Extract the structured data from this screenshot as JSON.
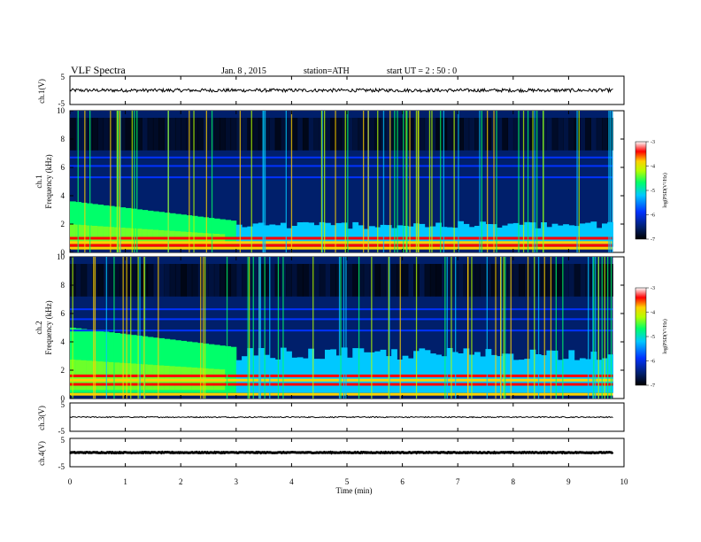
{
  "header": {
    "title": "VLF  Spectra",
    "date": "Jan. 8  , 2015",
    "station": "station=ATH",
    "start": "start  UT  =   2  : 50 : 0"
  },
  "colors": {
    "background": "#ffffff",
    "spectrogram_colormap": [
      "#000000",
      "#001f6b",
      "#0033ff",
      "#00c8ff",
      "#00ff6a",
      "#b4ff00",
      "#ffd000",
      "#ff0000",
      "#ffffff"
    ]
  },
  "chart_data": [
    {
      "type": "line",
      "id": "ch1-waveform",
      "ylabel": "ch.1(V)",
      "ylim": [
        -5,
        5
      ],
      "y_ticks": [
        "5",
        "-5"
      ],
      "xlim": [
        0,
        10
      ],
      "trace_level_V": 0,
      "trace_amplitude_V": 0.6,
      "data_extent_min": 9.8
    },
    {
      "type": "heatmap",
      "id": "ch1-spectrogram",
      "channel_label": "ch.1",
      "ylabel": "Frequency  (kHz)",
      "ylim": [
        0,
        10
      ],
      "y_ticks": [
        "0",
        "2",
        "4",
        "6",
        "8",
        "10"
      ],
      "xlim": [
        0,
        10
      ],
      "colorbar": {
        "label": "log(PSD(V²/Hz)",
        "range": [
          -7,
          -3
        ],
        "ticks": [
          "-3",
          "-4",
          "-5",
          "-6",
          "-7"
        ]
      },
      "description_values": {
        "broadband_hiss_top_kHz_at_0min": 3.6,
        "broadband_hiss_top_kHz_at_3min": 2.2,
        "strong_lines_kHz": [
          0.3,
          0.5,
          0.7,
          1.0
        ],
        "narrowband_lines_kHz": [
          5.3,
          6.1,
          6.7
        ]
      }
    },
    {
      "type": "heatmap",
      "id": "ch2-spectrogram",
      "channel_label": "ch.2",
      "ylabel": "Frequency  (kHz)",
      "ylim": [
        0,
        10
      ],
      "y_ticks": [
        "0",
        "2",
        "4",
        "6",
        "8",
        "10"
      ],
      "xlim": [
        0,
        10
      ],
      "colorbar": {
        "label": "log(PSD(V²/Hz)",
        "range": [
          -7,
          -3
        ],
        "ticks": [
          "-3",
          "-4",
          "-5",
          "-6",
          "-7"
        ]
      },
      "description_values": {
        "broadband_hiss_top_kHz_at_0min": 5.0,
        "broadband_hiss_top_kHz_at_3min": 3.6,
        "strong_lines_kHz": [
          0.3,
          1.0,
          1.3,
          1.6
        ],
        "narrowband_lines_kHz": [
          4.8,
          5.6,
          6.3
        ]
      }
    },
    {
      "type": "line",
      "id": "ch3-waveform",
      "ylabel": "ch.3(V)",
      "ylim": [
        -5,
        5
      ],
      "y_ticks": [
        "5",
        "-5"
      ],
      "xlim": [
        0,
        10
      ],
      "trace_level_V": 0,
      "trace_amplitude_V": 0.2,
      "data_extent_min": 9.8
    },
    {
      "type": "line",
      "id": "ch4-waveform",
      "ylabel": "ch.4(V)",
      "ylim": [
        -5,
        5
      ],
      "y_ticks": [
        "5",
        "-5"
      ],
      "xlim": [
        0,
        10
      ],
      "trace_level_V": 0,
      "trace_amplitude_V": 0.15,
      "data_extent_min": 9.8
    }
  ],
  "x_axis": {
    "label": "Time  (min)",
    "range": [
      0,
      10
    ],
    "ticks": [
      "0",
      "1",
      "2",
      "3",
      "4",
      "5",
      "6",
      "7",
      "8",
      "9",
      "10"
    ]
  }
}
